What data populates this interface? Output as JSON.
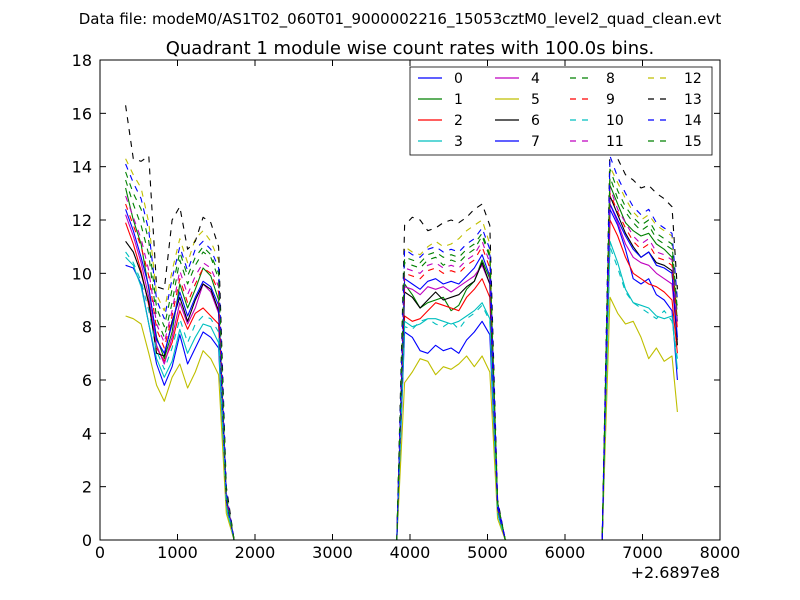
{
  "suptitle": "Data file: modeM0/AS1T02_060T01_9000002216_15053cztM0_level2_quad_clean.evt",
  "chart_data": {
    "type": "line",
    "title": "Quadrant 1 module wise count rates with 100.0s bins.",
    "xlabel": "",
    "ylabel": "",
    "x_offset_label": "+2.6897e8",
    "xlim": [
      0,
      8000
    ],
    "ylim": [
      0,
      18
    ],
    "x_ticks": [
      0,
      1000,
      2000,
      3000,
      4000,
      5000,
      6000,
      7000,
      8000
    ],
    "y_ticks": [
      0,
      2,
      4,
      6,
      8,
      10,
      12,
      14,
      16,
      18
    ],
    "grid": false,
    "legend_position": "top-right",
    "legend_columns": 4,
    "x_segments": [
      [
        330,
        430,
        530,
        630,
        730,
        830,
        930,
        1030,
        1130,
        1230,
        1330,
        1430,
        1530,
        1630,
        1730
      ],
      [
        1800,
        3800
      ],
      [
        3830,
        3930,
        4030,
        4130,
        4230,
        4330,
        4430,
        4530,
        4630,
        4730,
        4830,
        4930,
        5030,
        5130,
        5230
      ],
      [
        5300,
        6450
      ],
      [
        6480,
        6580,
        6680,
        6780,
        6880,
        6980,
        7080,
        7180,
        7280,
        7380,
        7450
      ]
    ],
    "series": [
      {
        "name": "0",
        "color": "#0000ff",
        "dash": false,
        "segments": [
          [
            10.3,
            10.2,
            9.6,
            8.1,
            6.6,
            5.8,
            6.5,
            7.7,
            6.6,
            7.2,
            7.8,
            7.6,
            7.2,
            1.2,
            0
          ],
          [
            0,
            0
          ],
          [
            0,
            7.8,
            7.6,
            7.1,
            7.0,
            7.3,
            7.1,
            7.2,
            7.0,
            7.5,
            7.8,
            8.2,
            7.7,
            1.0,
            0
          ],
          [
            0,
            0
          ],
          [
            0,
            12.4,
            11.8,
            10.9,
            9.8,
            9.6,
            9.8,
            9.2,
            9.0,
            8.6,
            6.0
          ]
        ]
      },
      {
        "name": "1",
        "color": "#008000",
        "dash": false,
        "segments": [
          [
            13.2,
            12.0,
            11.1,
            9.4,
            7.6,
            6.8,
            7.8,
            9.6,
            8.7,
            9.4,
            10.2,
            9.9,
            9.0,
            1.6,
            0
          ],
          [
            0,
            0
          ],
          [
            0,
            9.6,
            9.2,
            8.7,
            8.9,
            9.0,
            9.1,
            8.6,
            8.8,
            9.4,
            9.7,
            10.5,
            9.8,
            1.3,
            0
          ],
          [
            0,
            0
          ],
          [
            0,
            13.3,
            12.6,
            11.9,
            11.6,
            11.4,
            11.5,
            11.1,
            10.9,
            10.6,
            8.2
          ]
        ]
      },
      {
        "name": "2",
        "color": "#ff0000",
        "dash": false,
        "segments": [
          [
            11.9,
            11.1,
            10.1,
            8.8,
            7.2,
            6.7,
            7.4,
            8.6,
            7.9,
            8.5,
            8.7,
            8.4,
            8.1,
            1.4,
            0
          ],
          [
            0,
            0
          ],
          [
            0,
            8.4,
            8.2,
            8.3,
            8.6,
            8.9,
            8.8,
            8.7,
            8.6,
            9.1,
            9.4,
            9.8,
            9.1,
            1.2,
            0
          ],
          [
            0,
            0
          ],
          [
            0,
            12.0,
            11.4,
            10.6,
            10.0,
            9.8,
            9.6,
            9.5,
            9.3,
            9.0,
            7.0
          ]
        ]
      },
      {
        "name": "3",
        "color": "#00bfbf",
        "dash": false,
        "segments": [
          [
            10.6,
            10.3,
            9.5,
            8.1,
            6.8,
            6.1,
            6.7,
            7.9,
            7.0,
            7.6,
            8.1,
            8.0,
            7.4,
            1.2,
            0
          ],
          [
            0,
            0
          ],
          [
            0,
            8.2,
            8.0,
            8.1,
            8.3,
            8.3,
            8.2,
            8.1,
            8.2,
            8.4,
            8.6,
            8.9,
            8.3,
            1.0,
            0
          ],
          [
            0,
            0
          ],
          [
            0,
            11.2,
            10.4,
            9.4,
            8.9,
            8.8,
            8.7,
            8.4,
            8.3,
            8.4,
            6.4
          ]
        ]
      },
      {
        "name": "4",
        "color": "#bf00bf",
        "dash": false,
        "segments": [
          [
            12.2,
            11.4,
            10.4,
            9.1,
            7.3,
            6.6,
            7.6,
            8.9,
            8.1,
            8.7,
            9.6,
            9.3,
            8.5,
            1.5,
            0
          ],
          [
            0,
            0
          ],
          [
            0,
            9.5,
            9.4,
            9.2,
            9.5,
            9.4,
            9.5,
            9.3,
            9.5,
            9.7,
            9.9,
            10.3,
            9.6,
            1.2,
            0
          ],
          [
            0,
            0
          ],
          [
            0,
            12.6,
            11.9,
            11.1,
            10.6,
            10.4,
            10.3,
            10.0,
            9.8,
            9.6,
            7.5
          ]
        ]
      },
      {
        "name": "5",
        "color": "#bfbf00",
        "dash": false,
        "segments": [
          [
            8.4,
            8.3,
            8.1,
            7.0,
            5.8,
            5.2,
            6.1,
            6.6,
            5.7,
            6.3,
            7.1,
            6.8,
            6.2,
            1.0,
            0
          ],
          [
            0,
            0
          ],
          [
            0,
            5.9,
            6.3,
            6.8,
            6.7,
            6.2,
            6.5,
            6.4,
            6.6,
            6.9,
            6.5,
            6.9,
            6.3,
            0.8,
            0
          ],
          [
            0,
            0
          ],
          [
            0,
            9.1,
            8.5,
            8.1,
            8.2,
            7.6,
            6.8,
            7.2,
            6.7,
            6.9,
            4.8
          ]
        ]
      },
      {
        "name": "6",
        "color": "#000000",
        "dash": false,
        "segments": [
          [
            11.2,
            10.8,
            10.0,
            8.9,
            7.0,
            6.9,
            8.2,
            9.1,
            8.2,
            9.0,
            9.6,
            9.4,
            8.6,
            1.5,
            0
          ],
          [
            0,
            0
          ],
          [
            0,
            9.3,
            9.1,
            8.7,
            9.0,
            9.3,
            9.0,
            9.1,
            9.2,
            9.5,
            9.7,
            10.4,
            9.6,
            1.2,
            0
          ],
          [
            0,
            0
          ],
          [
            0,
            12.9,
            12.2,
            11.5,
            11.0,
            10.6,
            10.8,
            10.4,
            10.3,
            10.1,
            7.3
          ]
        ]
      },
      {
        "name": "7",
        "color": "#0000ff",
        "dash": false,
        "segments": [
          [
            12.4,
            11.6,
            10.6,
            9.5,
            7.5,
            7.0,
            8.1,
            9.3,
            8.4,
            9.1,
            9.7,
            9.5,
            8.8,
            1.5,
            0
          ],
          [
            0,
            0
          ],
          [
            0,
            9.8,
            9.6,
            9.4,
            9.7,
            9.8,
            9.6,
            9.7,
            9.6,
            9.9,
            10.2,
            10.7,
            9.9,
            1.2,
            0
          ],
          [
            0,
            0
          ],
          [
            0,
            12.6,
            12.0,
            11.4,
            10.9,
            10.6,
            10.8,
            10.3,
            10.2,
            10.0,
            7.6
          ]
        ]
      },
      {
        "name": "8",
        "color": "#008000",
        "dash": true,
        "segments": [
          [
            13.5,
            12.6,
            11.8,
            10.7,
            8.3,
            7.6,
            8.9,
            10.5,
            9.6,
            10.3,
            10.8,
            10.6,
            9.8,
            1.8,
            0
          ],
          [
            0,
            0
          ],
          [
            0,
            10.4,
            10.3,
            10.2,
            10.5,
            10.6,
            10.3,
            10.5,
            10.4,
            10.7,
            10.9,
            11.4,
            10.6,
            1.4,
            0
          ],
          [
            0,
            0
          ],
          [
            0,
            13.6,
            12.8,
            12.3,
            11.9,
            11.6,
            11.8,
            11.3,
            11.1,
            10.9,
            8.4
          ]
        ]
      },
      {
        "name": "9",
        "color": "#ff0000",
        "dash": true,
        "segments": [
          [
            12.6,
            11.8,
            11.0,
            9.9,
            7.9,
            7.2,
            8.4,
            9.8,
            8.9,
            9.6,
            10.2,
            10.0,
            9.3,
            1.6,
            0
          ],
          [
            0,
            0
          ],
          [
            0,
            10.0,
            9.9,
            9.8,
            10.1,
            10.2,
            10.0,
            10.1,
            10.0,
            10.3,
            10.5,
            11.0,
            10.2,
            1.3,
            0
          ],
          [
            0,
            0
          ],
          [
            0,
            13.0,
            12.3,
            11.7,
            11.2,
            10.9,
            11.1,
            10.6,
            10.5,
            10.3,
            7.9
          ]
        ]
      },
      {
        "name": "10",
        "color": "#00bfbf",
        "dash": true,
        "segments": [
          [
            10.8,
            10.4,
            9.7,
            8.6,
            7.1,
            6.4,
            7.2,
            8.3,
            7.4,
            8.1,
            8.4,
            8.3,
            7.8,
            1.3,
            0
          ],
          [
            0,
            0
          ],
          [
            0,
            8.0,
            7.9,
            8.2,
            8.3,
            8.1,
            8.0,
            8.2,
            7.9,
            8.3,
            8.5,
            8.8,
            8.2,
            1.0,
            0
          ],
          [
            0,
            0
          ],
          [
            0,
            11.0,
            10.2,
            9.3,
            8.9,
            8.7,
            8.5,
            8.3,
            8.6,
            8.2,
            6.8
          ]
        ]
      },
      {
        "name": "11",
        "color": "#bf00bf",
        "dash": true,
        "segments": [
          [
            12.9,
            12.1,
            11.3,
            10.1,
            8.1,
            7.4,
            8.6,
            10.1,
            9.2,
            9.9,
            10.4,
            10.2,
            9.5,
            1.7,
            0
          ],
          [
            0,
            0
          ],
          [
            0,
            10.2,
            10.1,
            10.0,
            10.3,
            10.4,
            10.2,
            10.3,
            10.2,
            10.5,
            10.7,
            11.2,
            10.4,
            1.4,
            0
          ],
          [
            0,
            0
          ],
          [
            0,
            13.2,
            12.4,
            11.9,
            11.4,
            11.1,
            11.3,
            10.8,
            10.7,
            10.5,
            8.1
          ]
        ]
      },
      {
        "name": "12",
        "color": "#bfbf00",
        "dash": true,
        "segments": [
          [
            14.3,
            13.7,
            13.2,
            11.9,
            9.2,
            8.6,
            10.1,
            11.3,
            10.4,
            11.3,
            11.6,
            11.2,
            10.5,
            1.9,
            0
          ],
          [
            0,
            0
          ],
          [
            0,
            11.0,
            10.8,
            10.7,
            11.0,
            11.2,
            11.0,
            11.1,
            11.3,
            11.6,
            11.8,
            12.0,
            11.1,
            1.4,
            0
          ],
          [
            0,
            0
          ],
          [
            0,
            14.0,
            13.4,
            12.8,
            12.3,
            12.0,
            12.2,
            11.8,
            11.6,
            11.4,
            8.8
          ]
        ]
      },
      {
        "name": "13",
        "color": "#000000",
        "dash": true,
        "segments": [
          [
            16.3,
            14.3,
            14.2,
            14.4,
            9.5,
            9.4,
            12.0,
            12.5,
            10.9,
            11.2,
            12.1,
            11.9,
            11.0,
            2.0,
            0
          ],
          [
            0,
            0
          ],
          [
            0,
            11.8,
            12.1,
            12.0,
            11.6,
            11.7,
            11.9,
            12.0,
            11.9,
            12.1,
            12.4,
            12.6,
            11.8,
            1.5,
            0
          ],
          [
            0,
            0
          ],
          [
            0,
            14.8,
            14.3,
            13.7,
            13.5,
            13.2,
            13.3,
            13.0,
            12.8,
            12.5,
            9.4
          ]
        ]
      },
      {
        "name": "14",
        "color": "#0000ff",
        "dash": true,
        "segments": [
          [
            14.1,
            13.4,
            12.8,
            11.6,
            9.0,
            8.3,
            9.8,
            11.0,
            10.1,
            10.9,
            11.2,
            10.9,
            10.2,
            1.8,
            0
          ],
          [
            0,
            0
          ],
          [
            0,
            10.9,
            10.7,
            10.6,
            10.9,
            11.0,
            10.8,
            10.9,
            10.8,
            11.1,
            11.3,
            11.7,
            10.9,
            1.4,
            0
          ],
          [
            0,
            0
          ],
          [
            0,
            14.4,
            13.6,
            13.0,
            12.5,
            12.2,
            12.4,
            11.9,
            11.7,
            11.5,
            9.0
          ]
        ]
      },
      {
        "name": "15",
        "color": "#008000",
        "dash": true,
        "segments": [
          [
            13.8,
            13.0,
            12.4,
            11.2,
            8.7,
            8.0,
            9.4,
            10.8,
            9.9,
            10.6,
            11.0,
            10.7,
            10.0,
            1.7,
            0
          ],
          [
            0,
            0
          ],
          [
            0,
            10.6,
            10.5,
            10.4,
            10.7,
            10.8,
            10.6,
            10.7,
            10.6,
            10.9,
            11.1,
            11.5,
            10.7,
            1.4,
            0
          ],
          [
            0,
            0
          ],
          [
            0,
            13.9,
            13.1,
            12.5,
            12.1,
            11.8,
            12.0,
            11.5,
            11.3,
            11.1,
            8.6
          ]
        ]
      }
    ]
  }
}
